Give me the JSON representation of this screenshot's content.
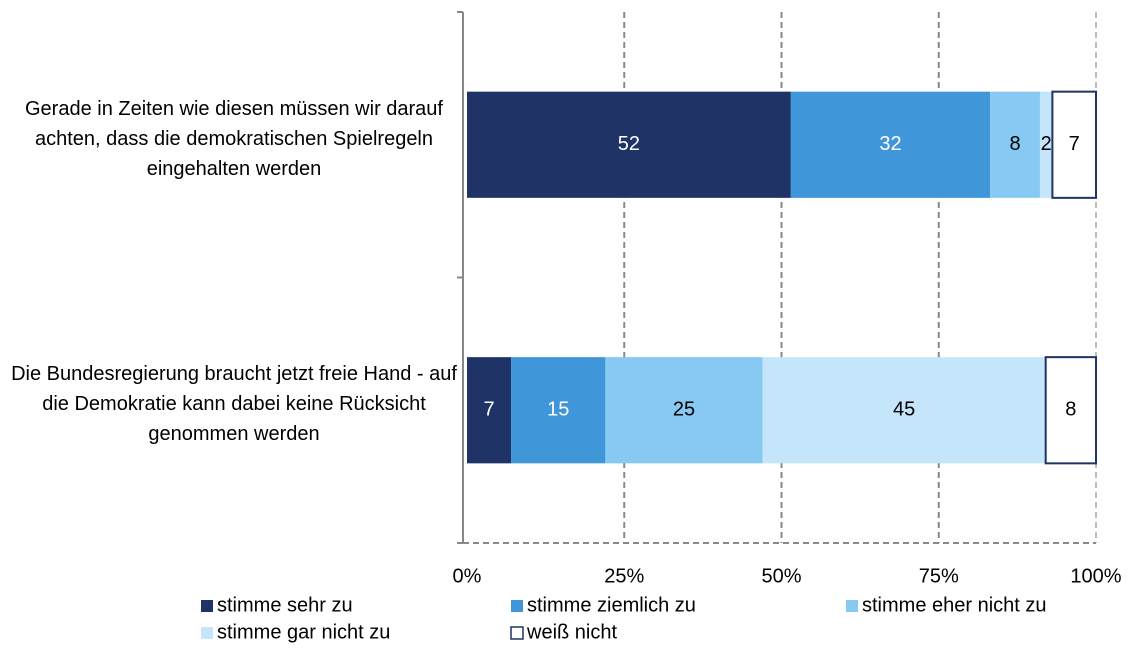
{
  "chart_data": {
    "type": "bar",
    "orientation": "horizontal",
    "stacked": "percent",
    "categories": [
      "Gerade in Zeiten wie diesen müssen wir darauf achten, dass die demokratischen Spielregeln eingehalten werden",
      "Die Bundesregierung braucht jetzt freie Hand - auf die Demokratie kann dabei keine Rücksicht genommen werden"
    ],
    "series": [
      {
        "name": "stimme sehr zu",
        "color": "#1f3366",
        "label_color": "#ffffff",
        "values": [
          52,
          7
        ]
      },
      {
        "name": "stimme ziemlich zu",
        "color": "#3f97d9",
        "label_color": "#ffffff",
        "values": [
          32,
          15
        ]
      },
      {
        "name": "stimme eher nicht zu",
        "color": "#87c9f2",
        "label_color": "#000000",
        "values": [
          8,
          25
        ]
      },
      {
        "name": "stimme gar nicht zu",
        "color": "#c5e5fb",
        "label_color": "#000000",
        "values": [
          2,
          45
        ]
      },
      {
        "name": "weiß nicht",
        "color": "#ffffff",
        "border": "#1f3366",
        "label_color": "#000000",
        "values": [
          7,
          8
        ]
      }
    ],
    "xlim": [
      0,
      100
    ],
    "xticks": [
      {
        "value": 0,
        "label": "0%"
      },
      {
        "value": 25,
        "label": "25%"
      },
      {
        "value": 50,
        "label": "50%"
      },
      {
        "value": 75,
        "label": "75%"
      },
      {
        "value": 100,
        "label": "100%"
      }
    ],
    "grid": true,
    "legend": "bottom"
  }
}
